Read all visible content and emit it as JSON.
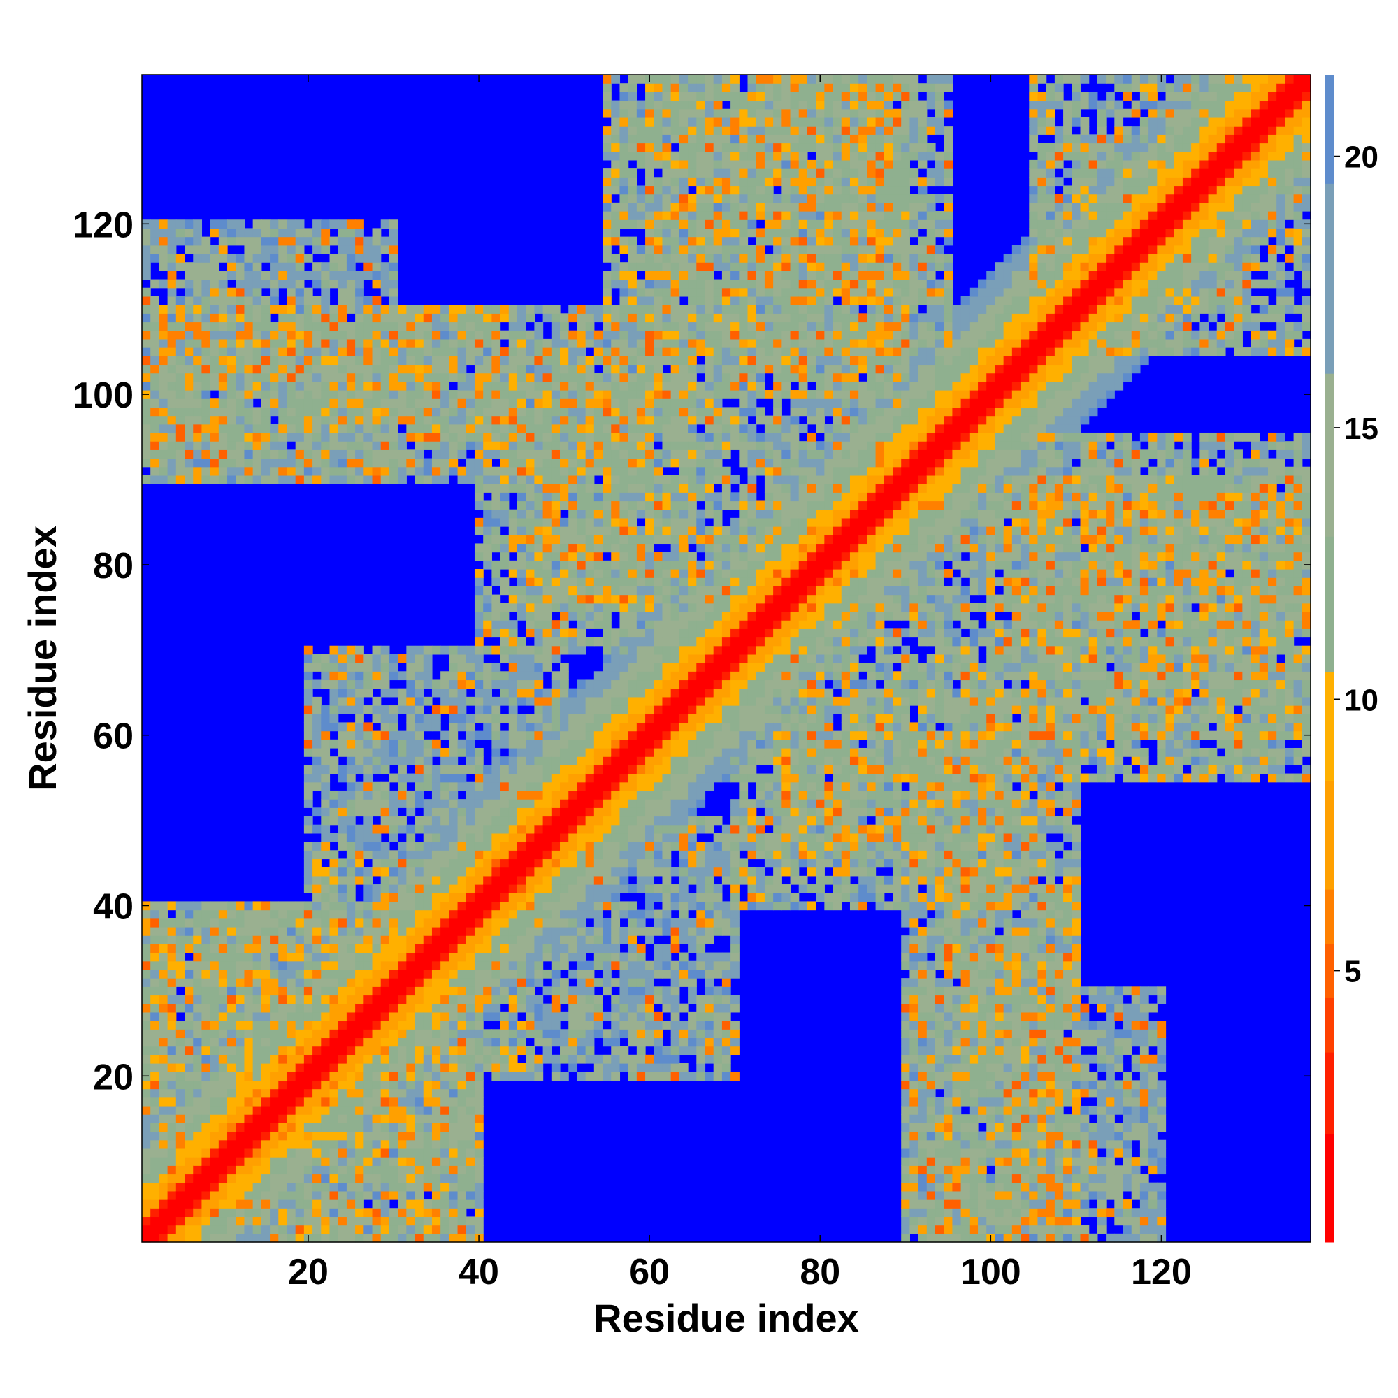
{
  "chart_data": {
    "type": "heatmap",
    "title": "",
    "xlabel": "Residue index",
    "ylabel": "Residue index",
    "n_residues": 137,
    "xlim": [
      1,
      137
    ],
    "ylim": [
      1,
      137
    ],
    "x_ticks": [
      20,
      40,
      60,
      80,
      100,
      120
    ],
    "y_ticks": [
      20,
      40,
      60,
      80,
      100,
      120
    ],
    "colorbar": {
      "ticks": [
        5,
        10,
        15,
        20
      ],
      "range": [
        0,
        21.5
      ],
      "colors": [
        "#ff0000",
        "#ff2000",
        "#ff4000",
        "#ff6000",
        "#ff8000",
        "#ffa000",
        "#ffb000",
        "#8fb08f",
        "#9ab090",
        "#7a9fb8",
        "#5e8ccc",
        "#0000ff"
      ],
      "stops": [
        0,
        2,
        3.5,
        4.5,
        5.5,
        6.5,
        8.5,
        10.5,
        13,
        16,
        19.5,
        21.5
      ]
    },
    "diagonal": {
      "core_width": 2,
      "band_width": 14
    },
    "contact_regions": [
      {
        "x": [
          1,
          20
        ],
        "y": [
          1,
          40
        ],
        "value": 14
      },
      {
        "x": [
          20,
          40
        ],
        "y": [
          1,
          20
        ],
        "value": 14
      },
      {
        "x": [
          1,
          60
        ],
        "y": [
          90,
          110
        ],
        "value": 15
      },
      {
        "x": [
          45,
          75
        ],
        "y": [
          75,
          100
        ],
        "value": 14
      },
      {
        "x": [
          60,
          90
        ],
        "y": [
          100,
          137
        ],
        "value": 14
      },
      {
        "x": [
          75,
          95
        ],
        "y": [
          80,
          137
        ],
        "value": 15
      },
      {
        "x": [
          90,
          120
        ],
        "y": [
          1,
          30
        ],
        "value": 16
      },
      {
        "x": [
          95,
          110
        ],
        "y": [
          1,
          45
        ],
        "value": 14
      },
      {
        "x": [
          70,
          105
        ],
        "y": [
          40,
          65
        ],
        "value": 14
      },
      {
        "x": [
          105,
          137
        ],
        "y": [
          55,
          90
        ],
        "value": 14
      },
      {
        "x": [
          105,
          137
        ],
        "y": [
          105,
          137
        ],
        "value": 14
      },
      {
        "x": [
          20,
          45
        ],
        "y": [
          25,
          45
        ],
        "value": 13
      },
      {
        "x": [
          45,
          70
        ],
        "y": [
          20,
          50
        ],
        "value": 16
      }
    ],
    "grid": false,
    "legend": "colorbar-right"
  }
}
